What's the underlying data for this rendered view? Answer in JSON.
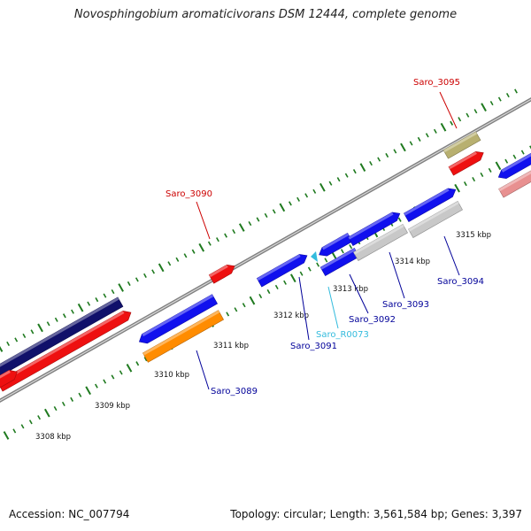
{
  "title": "Novosphingobium aromaticivorans DSM 12444, complete genome",
  "footer": {
    "accession_label": "Accession:",
    "accession": "NC_007794",
    "topology_label": "Topology:",
    "topology": "circular;",
    "length_label": "Length:",
    "length": "3,561,584 bp;",
    "genes_label": "Genes:",
    "genes": "3,397"
  },
  "colors": {
    "backbone": "#808080",
    "tick": "#1f7a1f",
    "gene_blue": "#1010ee",
    "gene_navy": "#10106a",
    "gene_red": "#ee1010",
    "gene_orange": "#ff8c00",
    "gene_gray": "#c8c8c8",
    "gene_olive": "#b8b070",
    "gene_pink": "#e89090",
    "label_red": "#cc0000",
    "label_blue": "#000099",
    "label_cyan": "#33bbdd"
  },
  "scale_labels": [
    "3308 kbp",
    "3309 kbp",
    "3310 kbp",
    "3311 kbp",
    "3312 kbp",
    "3313 kbp",
    "3314 kbp",
    "3315 kbp"
  ],
  "genes": [
    {
      "name": "Saro_3089",
      "color": "label_blue"
    },
    {
      "name": "Saro_3090",
      "color": "label_red"
    },
    {
      "name": "Saro_3091",
      "color": "label_blue"
    },
    {
      "name": "Saro_R0073",
      "color": "label_cyan"
    },
    {
      "name": "Saro_3092",
      "color": "label_blue"
    },
    {
      "name": "Saro_3093",
      "color": "label_blue"
    },
    {
      "name": "Saro_3094",
      "color": "label_blue"
    },
    {
      "name": "Saro_3095",
      "color": "label_red"
    }
  ]
}
